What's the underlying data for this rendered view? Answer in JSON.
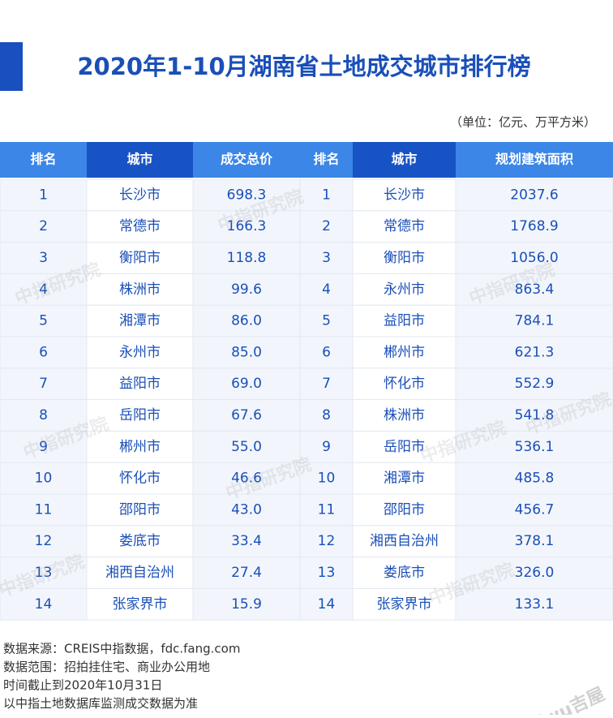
{
  "title": "2020年1-10月湖南省土地成交城市排行榜",
  "unit": "（单位：亿元、万平方米）",
  "table": {
    "headers": [
      "排名",
      "城市",
      "成交总价",
      "排名",
      "城市",
      "规划建筑面积"
    ],
    "rows": [
      [
        "1",
        "长沙市",
        "698.3",
        "1",
        "长沙市",
        "2037.6"
      ],
      [
        "2",
        "常德市",
        "166.3",
        "2",
        "常德市",
        "1768.9"
      ],
      [
        "3",
        "衡阳市",
        "118.8",
        "3",
        "衡阳市",
        "1056.0"
      ],
      [
        "4",
        "株洲市",
        "99.6",
        "4",
        "永州市",
        "863.4"
      ],
      [
        "5",
        "湘潭市",
        "86.0",
        "5",
        "益阳市",
        "784.1"
      ],
      [
        "6",
        "永州市",
        "85.0",
        "6",
        "郴州市",
        "621.3"
      ],
      [
        "7",
        "益阳市",
        "69.0",
        "7",
        "怀化市",
        "552.9"
      ],
      [
        "8",
        "岳阳市",
        "67.6",
        "8",
        "株洲市",
        "541.8"
      ],
      [
        "9",
        "郴州市",
        "55.0",
        "9",
        "岳阳市",
        "536.1"
      ],
      [
        "10",
        "怀化市",
        "46.6",
        "10",
        "湘潭市",
        "485.8"
      ],
      [
        "11",
        "邵阳市",
        "43.0",
        "11",
        "邵阳市",
        "456.7"
      ],
      [
        "12",
        "娄底市",
        "33.4",
        "12",
        "湘西自治州",
        "378.1"
      ],
      [
        "13",
        "湘西自治州",
        "27.4",
        "13",
        "娄底市",
        "326.0"
      ],
      [
        "14",
        "张家界市",
        "15.9",
        "14",
        "张家界市",
        "133.1"
      ]
    ]
  },
  "notes": [
    "数据来源：CREIS中指数据，fdc.fang.com",
    "数据范围：招拍挂住宅、商业办公用地",
    "时间截止到2020年10月31日",
    "以中指土地数据库监测成交数据为准"
  ],
  "watermark": "中指研究院",
  "logo": "jiwu吉屋"
}
